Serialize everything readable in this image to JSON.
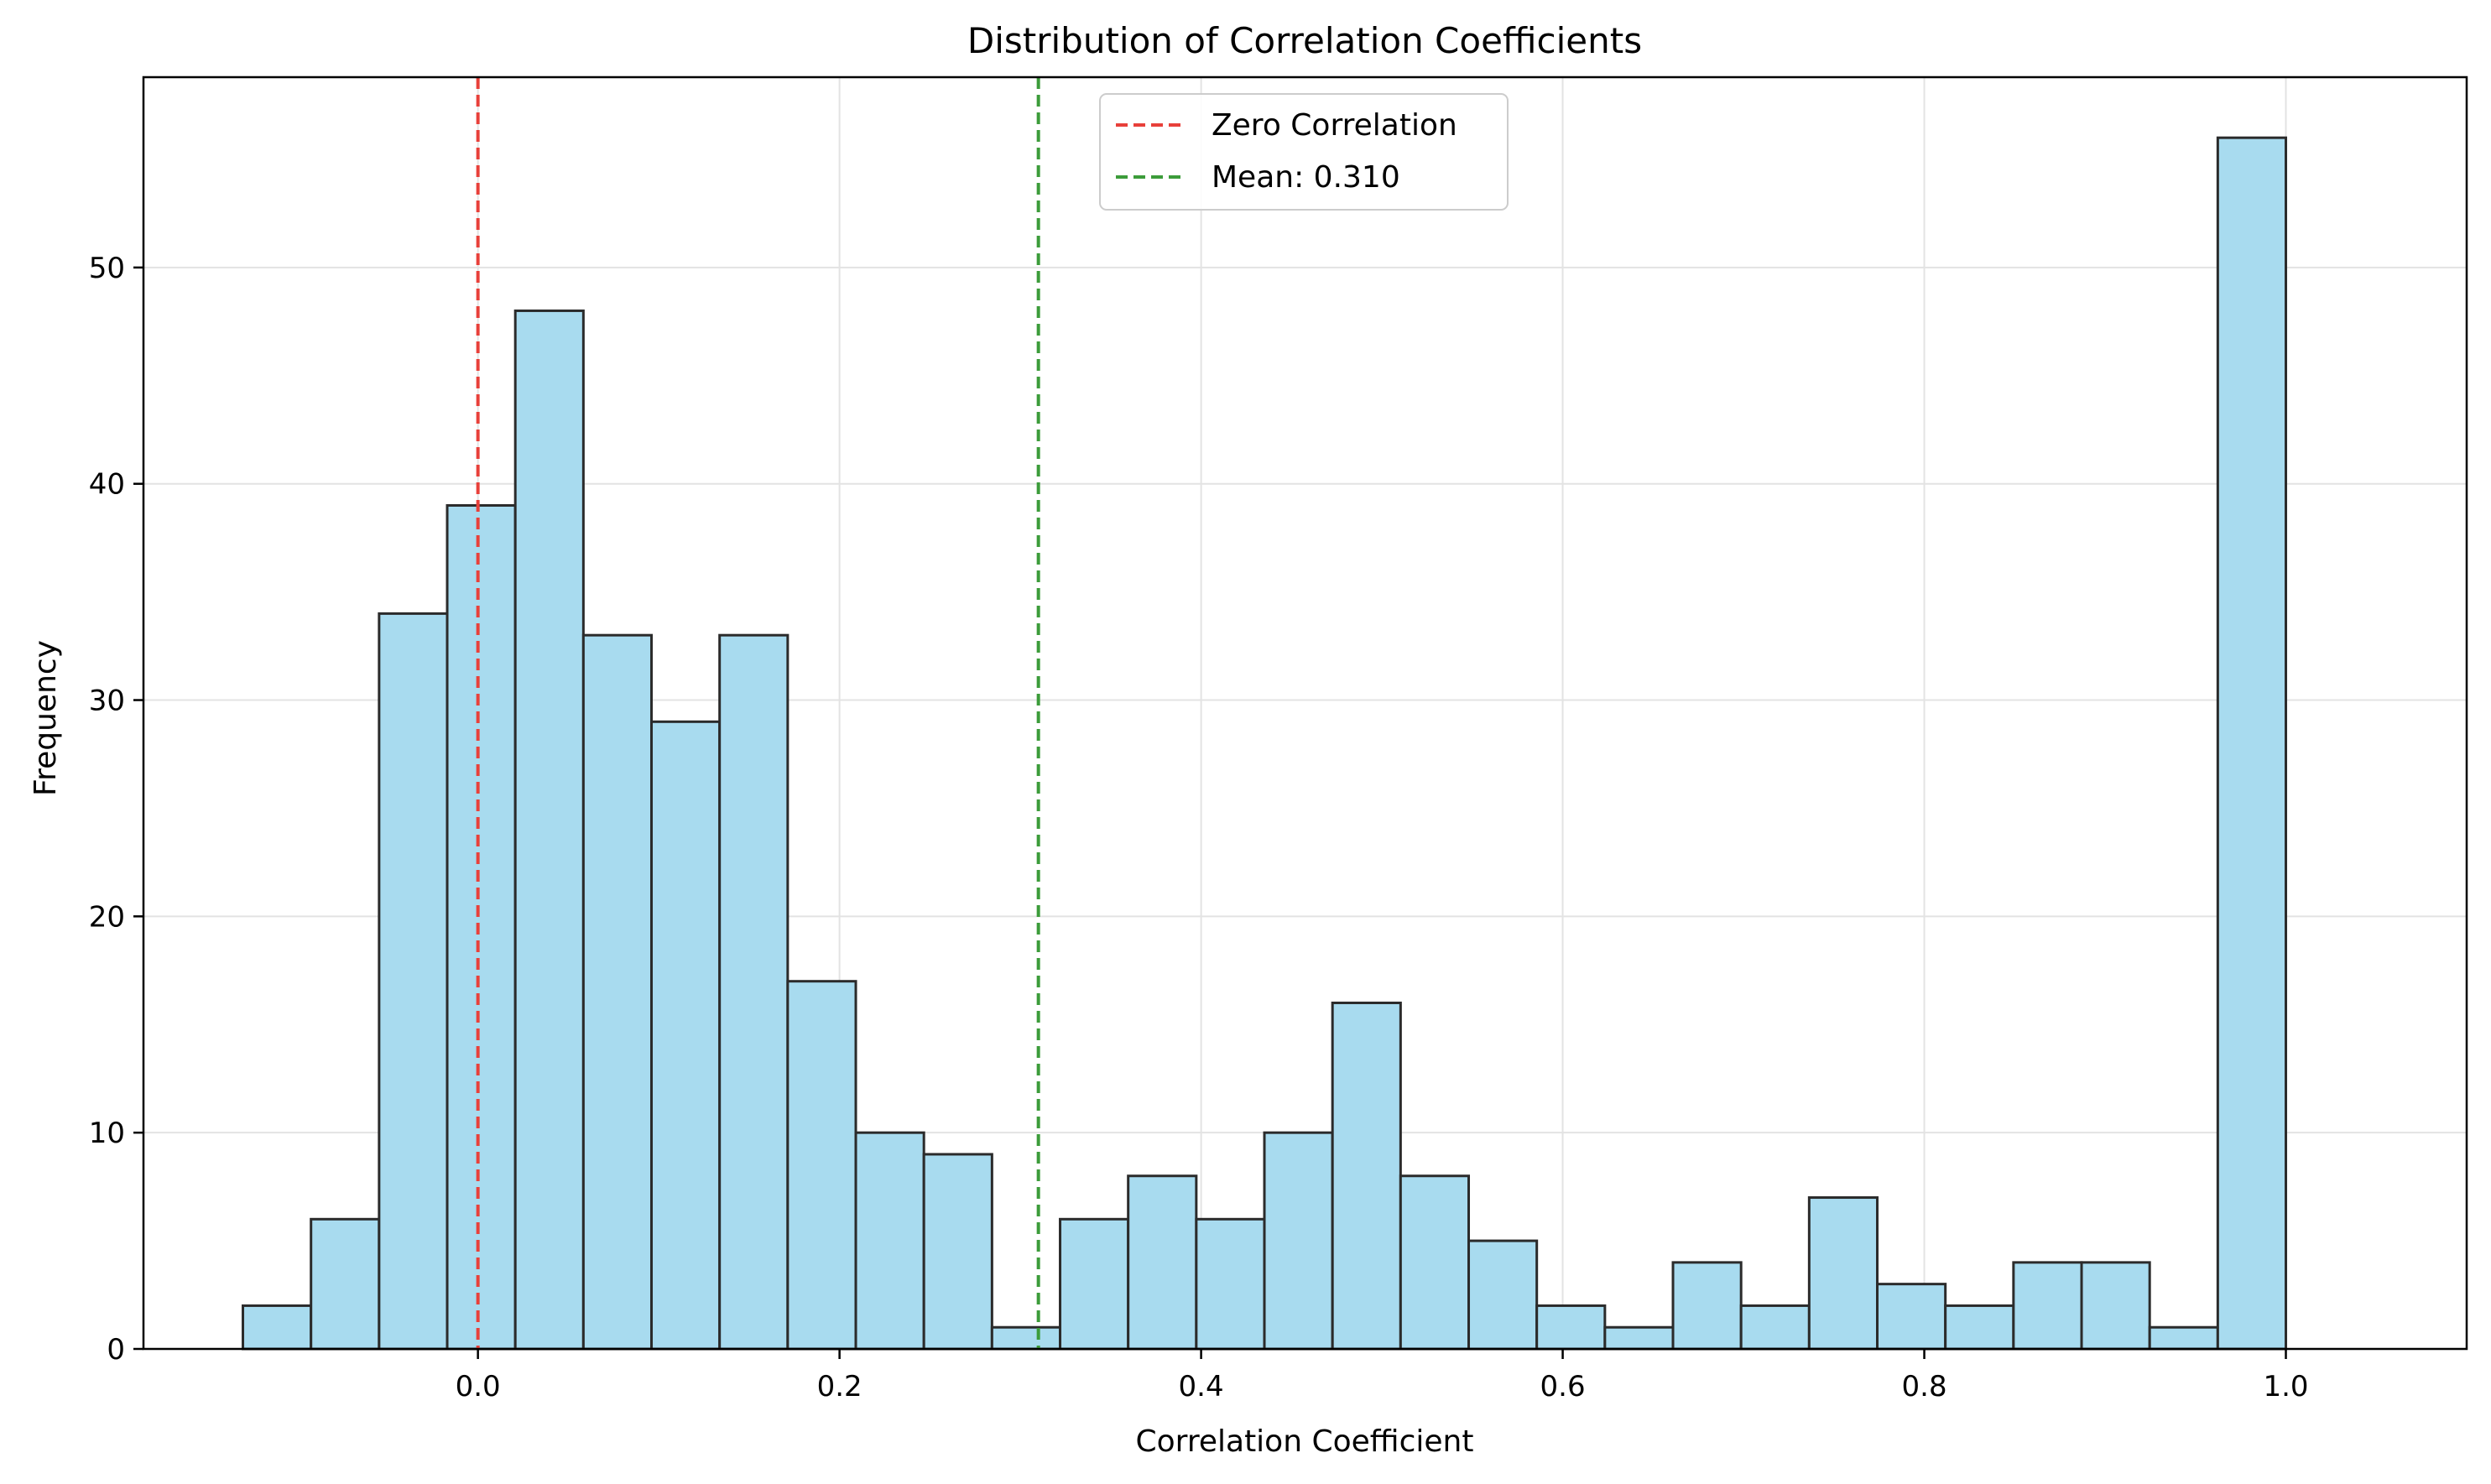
{
  "chart_data": {
    "type": "bar",
    "title": "Distribution of Correlation Coefficients",
    "xlabel": "Correlation Coefficient",
    "ylabel": "Frequency",
    "xlim": [
      -0.185,
      1.1
    ],
    "ylim": [
      0,
      58.8
    ],
    "grid": true,
    "legend_position": "top-center",
    "bin_start": -0.13,
    "bin_width": 0.03766667,
    "values": [
      2,
      6,
      34,
      39,
      48,
      33,
      29,
      33,
      17,
      10,
      9,
      1,
      6,
      8,
      6,
      10,
      16,
      8,
      5,
      2,
      1,
      4,
      2,
      7,
      3,
      2,
      4,
      4,
      1,
      56
    ],
    "x_ticks": [
      {
        "value": 0.0,
        "label": "0.0"
      },
      {
        "value": 0.2,
        "label": "0.2"
      },
      {
        "value": 0.4,
        "label": "0.4"
      },
      {
        "value": 0.6,
        "label": "0.6"
      },
      {
        "value": 0.8,
        "label": "0.8"
      },
      {
        "value": 1.0,
        "label": "1.0"
      }
    ],
    "y_ticks": [
      {
        "value": 0,
        "label": "0"
      },
      {
        "value": 10,
        "label": "10"
      },
      {
        "value": 20,
        "label": "20"
      },
      {
        "value": 30,
        "label": "30"
      },
      {
        "value": 40,
        "label": "40"
      },
      {
        "value": 50,
        "label": "50"
      }
    ],
    "reference_lines": [
      {
        "name": "Zero Correlation",
        "x": 0.0,
        "color": "#e8403a"
      },
      {
        "name": "Mean: 0.310",
        "x": 0.31,
        "color": "#3c9c3a"
      }
    ],
    "colors": {
      "bar_fill": "#a8dbef",
      "bar_edge": "#2b2b2b",
      "grid": "#e3e3e3",
      "axis": "#000000"
    }
  }
}
